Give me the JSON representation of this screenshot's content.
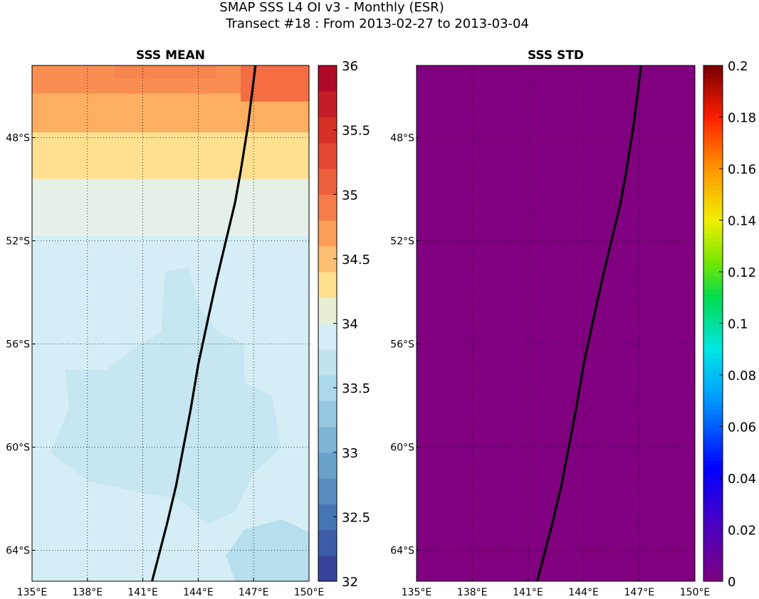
{
  "header": {
    "title": "SMAP SSS L4 OI v3 - Monthly (ESR)",
    "subtitle": "Transect #18 : From 2013-02-27 to 2013-03-04"
  },
  "chart_data": [
    {
      "type": "heatmap",
      "title": "SSS MEAN",
      "x_ticks": [
        "135°E",
        "138°E",
        "141°E",
        "144°E",
        "147°E",
        "150°E"
      ],
      "x_tick_values": [
        135,
        138,
        141,
        144,
        147,
        150
      ],
      "y_ticks": [
        "48°S",
        "52°S",
        "56°S",
        "60°S",
        "64°S"
      ],
      "y_tick_values": [
        -48,
        -52,
        -56,
        -60,
        -64
      ],
      "xlim": [
        135,
        150
      ],
      "ylim": [
        -65.2,
        -45.2
      ],
      "grid": true,
      "colorbar": {
        "colormap": "RdYlBu_r",
        "range": [
          32,
          36
        ],
        "tick_labels": [
          "32",
          "32.5",
          "33",
          "33.5",
          "34",
          "34.5",
          "35",
          "35.5",
          "36"
        ],
        "tick_values": [
          32,
          32.5,
          33,
          33.5,
          34,
          34.5,
          35,
          35.5,
          36
        ]
      },
      "approx_field": [
        {
          "lat_range": [
            -46.3,
            -45.2
          ],
          "value": 34.8,
          "note_east_side": 35.0
        },
        {
          "lat_range": [
            -47.8,
            -46.3
          ],
          "value": 34.6
        },
        {
          "lat_range": [
            -49.6,
            -47.8
          ],
          "value": 34.3
        },
        {
          "lat_range": [
            -51.8,
            -49.6
          ],
          "value": 34.05
        },
        {
          "lat_range": [
            -65.2,
            -51.8
          ],
          "value": 33.9,
          "patches": 33.75
        }
      ],
      "transect": {
        "lon": [
          141.5,
          142.3,
          142.8,
          143.2,
          143.6,
          144.0,
          144.6,
          145.0,
          145.5,
          146.0,
          146.3,
          146.7,
          147.1
        ],
        "lat": [
          -65.2,
          -63.0,
          -61.5,
          -60.0,
          -58.5,
          -56.8,
          -54.8,
          -53.5,
          -52.0,
          -50.5,
          -49.3,
          -47.5,
          -45.2
        ]
      }
    },
    {
      "type": "heatmap",
      "title": "SSS STD",
      "x_ticks": [
        "135°E",
        "138°E",
        "141°E",
        "144°E",
        "147°E",
        "150°E"
      ],
      "x_tick_values": [
        135,
        138,
        141,
        144,
        147,
        150
      ],
      "y_ticks": [
        "48°S",
        "52°S",
        "56°S",
        "60°S",
        "64°S"
      ],
      "y_tick_values": [
        -48,
        -52,
        -56,
        -60,
        -64
      ],
      "xlim": [
        135,
        150
      ],
      "ylim": [
        -65.2,
        -45.2
      ],
      "grid": true,
      "field_value": 0,
      "colorbar": {
        "colormap": "jet-like",
        "range": [
          0,
          0.2
        ],
        "tick_labels": [
          "0",
          "0.02",
          "0.04",
          "0.06",
          "0.08",
          "0.1",
          "0.12",
          "0.14",
          "0.16",
          "0.18",
          "0.2"
        ],
        "tick_values": [
          0,
          0.02,
          0.04,
          0.06,
          0.08,
          0.1,
          0.12,
          0.14,
          0.16,
          0.18,
          0.2
        ]
      },
      "transect": {
        "lon": [
          141.5,
          142.3,
          142.8,
          143.2,
          143.6,
          144.0,
          144.6,
          145.0,
          145.5,
          146.0,
          146.3,
          146.7,
          147.1
        ],
        "lat": [
          -65.2,
          -63.0,
          -61.5,
          -60.0,
          -58.5,
          -56.8,
          -54.8,
          -53.5,
          -52.0,
          -50.5,
          -49.3,
          -47.5,
          -45.2
        ]
      }
    }
  ]
}
